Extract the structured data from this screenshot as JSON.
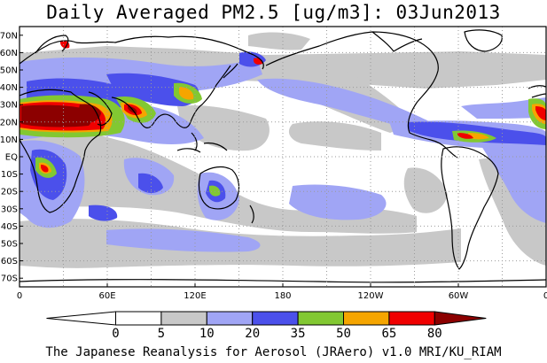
{
  "title": "Daily Averaged PM2.5 [ug/m3]: 03Jun2013",
  "footer": "The Japanese Reanalysis for Aerosol (JRAero) v1.0 MRI/KU_RIAM",
  "map": {
    "lon_range": [
      0,
      360
    ],
    "lat_range": [
      -75,
      75
    ],
    "lat_ticks": [
      "70N",
      "60N",
      "50N",
      "40N",
      "30N",
      "20N",
      "10N",
      "EQ",
      "10S",
      "20S",
      "30S",
      "40S",
      "50S",
      "60S",
      "70S"
    ],
    "lon_ticks": [
      "0",
      "60E",
      "120E",
      "180",
      "120W",
      "60W",
      "0"
    ],
    "grid": true
  },
  "colorbar": {
    "levels": [
      "0",
      "5",
      "10",
      "20",
      "35",
      "50",
      "65",
      "80"
    ],
    "colors": [
      "#ffffff",
      "#c8c8c8",
      "#a0a5f5",
      "#4b50eb",
      "#82c832",
      "#f5a500",
      "#f00000",
      "#8c0000"
    ]
  }
}
